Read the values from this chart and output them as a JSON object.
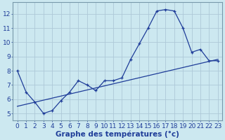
{
  "xlabel": "Graphe des températures (°c)",
  "bg_color": "#cce8f0",
  "line_color": "#1f3d99",
  "line1_x": [
    0,
    1,
    2,
    3,
    4,
    5,
    6,
    7,
    8,
    9,
    10,
    11,
    12,
    13,
    14,
    15,
    16,
    17,
    18,
    19,
    20,
    21,
    22,
    23
  ],
  "line1_y": [
    8.0,
    6.5,
    5.8,
    5.0,
    5.2,
    5.9,
    6.5,
    7.3,
    7.0,
    6.6,
    7.3,
    7.3,
    7.5,
    8.8,
    9.9,
    11.0,
    12.2,
    12.3,
    12.2,
    11.0,
    9.3,
    9.5,
    8.7,
    8.7
  ],
  "line2_x": [
    0,
    23
  ],
  "line2_y": [
    5.5,
    8.8
  ],
  "ylim": [
    4.5,
    12.8
  ],
  "xlim": [
    -0.5,
    23.5
  ],
  "yticks": [
    5,
    6,
    7,
    8,
    9,
    10,
    11,
    12
  ],
  "xticks": [
    0,
    1,
    2,
    3,
    4,
    5,
    6,
    7,
    8,
    9,
    10,
    11,
    12,
    13,
    14,
    15,
    16,
    17,
    18,
    19,
    20,
    21,
    22,
    23
  ],
  "xlabel_fontsize": 7.5,
  "tick_fontsize": 6.5,
  "grid_color": "#adc8d8",
  "spine_color": "#7799aa"
}
